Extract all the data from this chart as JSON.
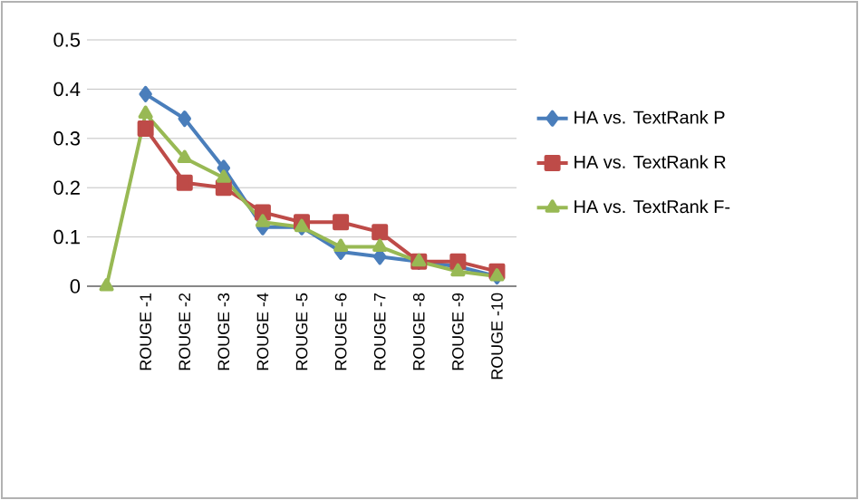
{
  "chart_data": {
    "type": "line",
    "categories": [
      null,
      "ROUGE -1",
      "ROUGE -2",
      "ROUGE -3",
      "ROUGE -4",
      "ROUGE -5",
      "ROUGE -6",
      "ROUGE -7",
      "ROUGE -8",
      "ROUGE -9",
      "ROUGE -10"
    ],
    "series": [
      {
        "name": "HA vs. TextRank P",
        "color": "#4a7ebb",
        "marker": "diamond",
        "values": [
          null,
          0.39,
          0.34,
          0.24,
          0.12,
          0.12,
          0.07,
          0.06,
          0.05,
          0.04,
          0.02
        ]
      },
      {
        "name": "HA vs. TextRank R",
        "color": "#be4b48",
        "marker": "square",
        "values": [
          null,
          0.32,
          0.21,
          0.2,
          0.15,
          0.13,
          0.13,
          0.11,
          0.05,
          0.05,
          0.03
        ]
      },
      {
        "name": "HA vs. TextRank F-",
        "color": "#98b954",
        "marker": "triangle",
        "values": [
          0,
          0.35,
          0.26,
          0.22,
          0.13,
          0.12,
          0.08,
          0.08,
          0.05,
          0.03,
          0.02
        ]
      }
    ],
    "ylim": [
      0,
      0.5
    ],
    "yticks": [
      0,
      0.1,
      0.2,
      0.3,
      0.4,
      0.5
    ],
    "grid": "y",
    "legend": "right",
    "line_style": "solid"
  }
}
